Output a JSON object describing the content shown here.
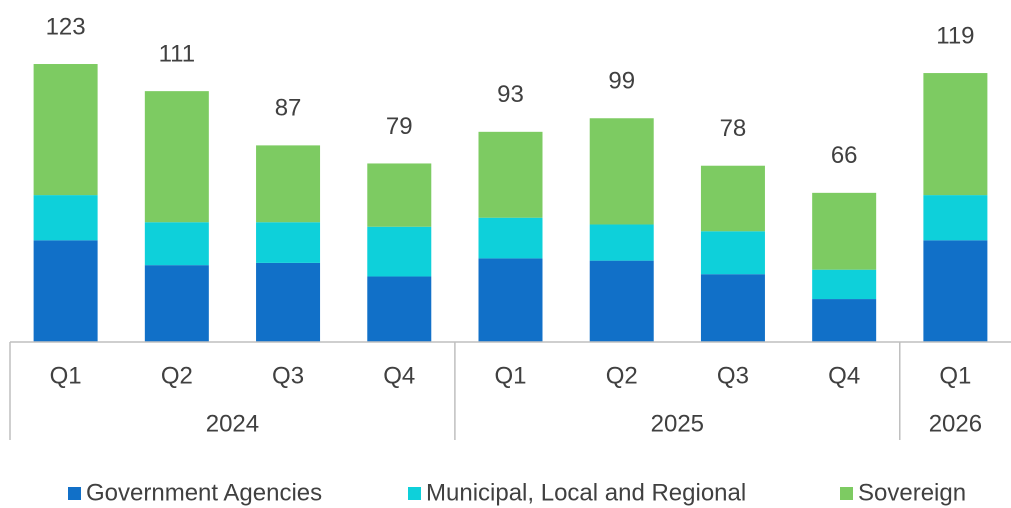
{
  "chart_data": {
    "type": "stacked_bar",
    "groups": [
      {
        "name": "2024",
        "categories": [
          "Q1",
          "Q2",
          "Q3",
          "Q4"
        ]
      },
      {
        "name": "2025",
        "categories": [
          "Q1",
          "Q2",
          "Q3",
          "Q4"
        ]
      },
      {
        "name": "2026",
        "categories": [
          "Q1"
        ]
      }
    ],
    "series": [
      {
        "name": "Government Agencies",
        "color": "#1170c8",
        "values": [
          45,
          34,
          35,
          29,
          37,
          36,
          30,
          19,
          45
        ]
      },
      {
        "name": "Municipal, Local and Regional",
        "color": "#0ed0da",
        "values": [
          20,
          19,
          18,
          22,
          18,
          16,
          19,
          13,
          20
        ]
      },
      {
        "name": "Sovereign",
        "color": "#7dcb62",
        "values": [
          58,
          58,
          34,
          28,
          38,
          47,
          29,
          34,
          54
        ]
      }
    ],
    "totals": [
      123,
      111,
      87,
      79,
      93,
      99,
      78,
      66,
      119
    ],
    "ylim": [
      0,
      125
    ]
  }
}
